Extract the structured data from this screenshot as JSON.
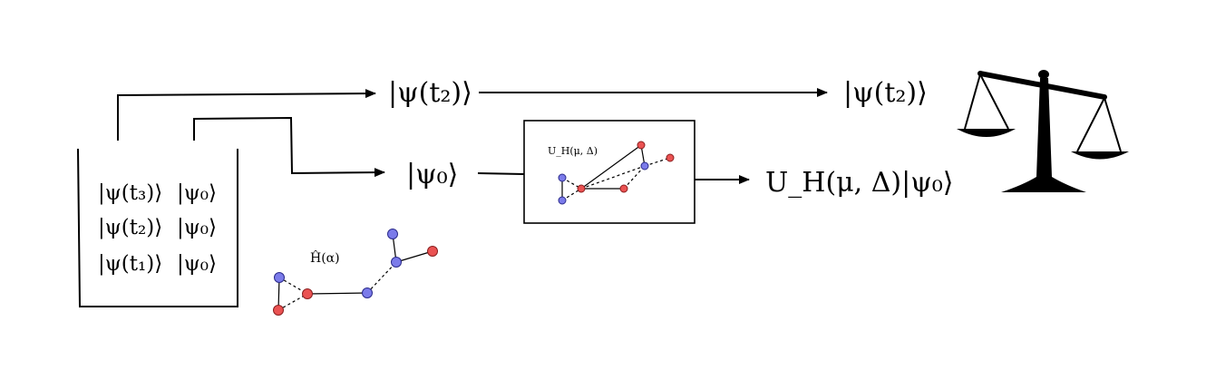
{
  "states": {
    "top_input": "|ψ(t₂)⟩",
    "top_output": "|ψ(t₂)⟩",
    "psi0": "|ψ₀⟩",
    "output": "U_H(μ, Δ)|ψ₀⟩"
  },
  "dataset": {
    "rows": [
      {
        "state": "|ψ(t₃)⟩",
        "initial": "|ψ₀⟩"
      },
      {
        "state": "|ψ(t₂)⟩",
        "initial": "|ψ₀⟩"
      },
      {
        "state": "|ψ(t₁)⟩",
        "initial": "|ψ₀⟩"
      }
    ]
  },
  "hamiltonian_label": "Ĥ(α)",
  "box_label": "U_H(μ, Δ)",
  "colors": {
    "blue_node": "#7b7bea",
    "red_node": "#ea5252"
  },
  "icons": {
    "comparison": "balance-scale-icon"
  }
}
